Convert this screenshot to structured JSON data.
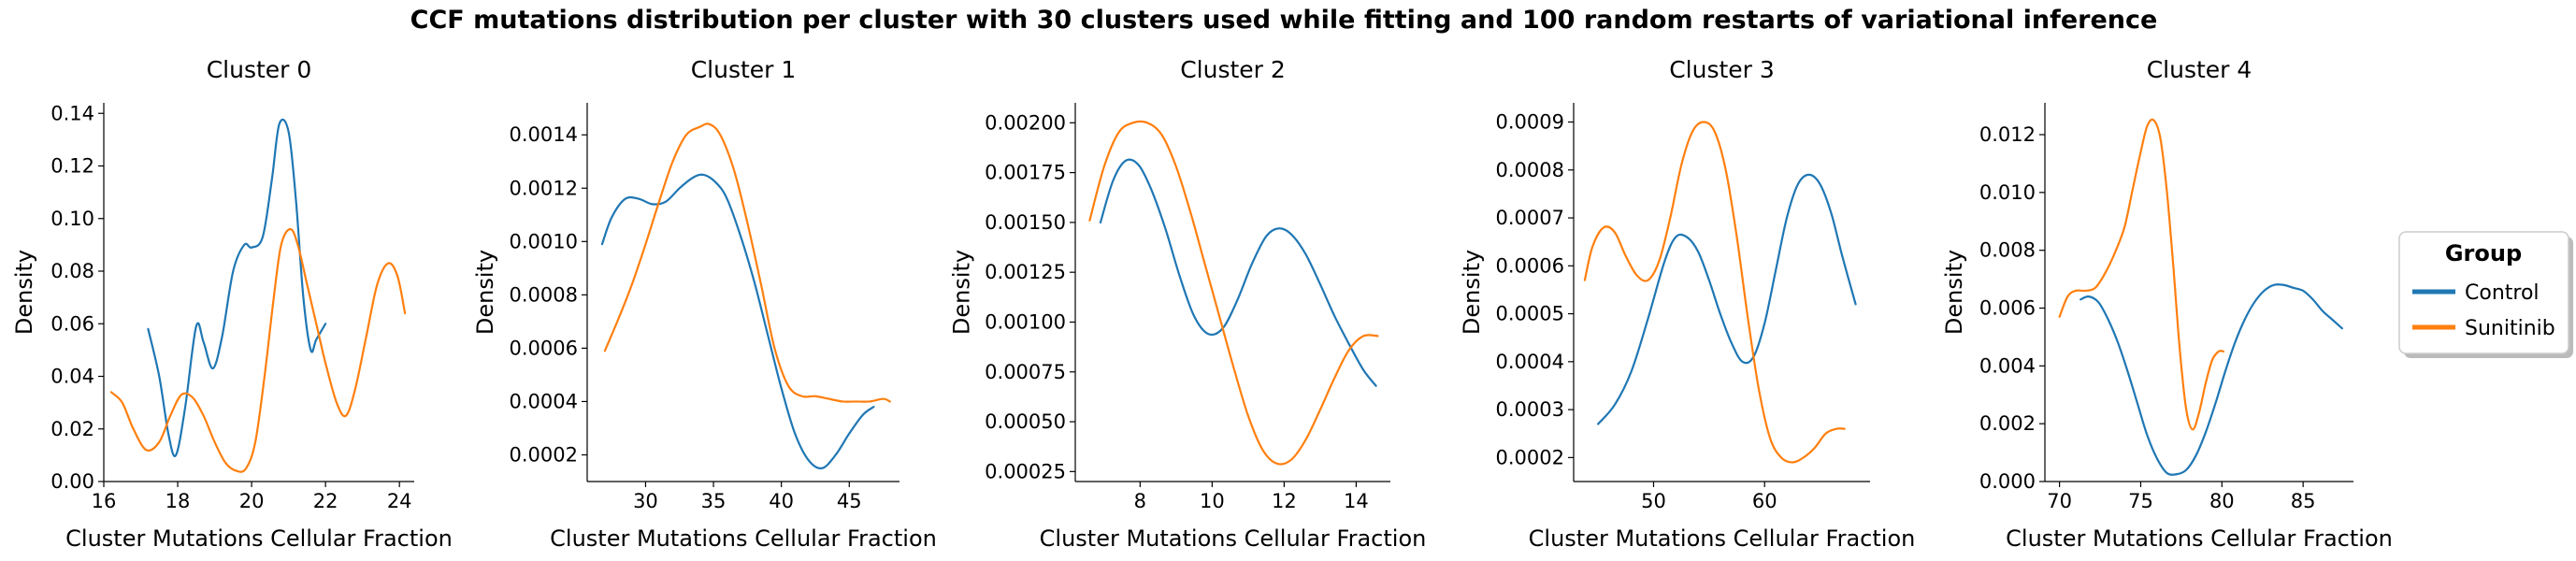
{
  "figure": {
    "title": "CCF mutations distribution per cluster with 30 clusters used while fitting and 100 random restarts of variational inference"
  },
  "colors": {
    "Control": "#1f77b4",
    "Sunitinib": "#ff7f0e"
  },
  "legend": {
    "title": "Group",
    "placement": "right",
    "entries": [
      "Control",
      "Sunitinib"
    ]
  },
  "chart_data": [
    {
      "type": "line",
      "title": "Cluster 0",
      "xlabel": "Cluster Mutations Cellular Fraction",
      "ylabel": "Density",
      "xlim": [
        16,
        24.4
      ],
      "ylim": [
        0,
        0.144
      ],
      "xticks": [
        16,
        18,
        20,
        22,
        24
      ],
      "xtick_labels": [
        "16",
        "18",
        "20",
        "22",
        "24"
      ],
      "yticks": [
        0,
        0.02,
        0.04,
        0.06,
        0.08,
        0.1,
        0.12,
        0.14
      ],
      "ytick_labels": [
        "0.00",
        "0.02",
        "0.04",
        "0.06",
        "0.08",
        "0.10",
        "0.12",
        "0.14"
      ],
      "series": [
        {
          "name": "Control",
          "x": [
            17.2,
            17.5,
            17.75,
            17.95,
            18.2,
            18.5,
            18.7,
            18.95,
            19.2,
            19.5,
            19.8,
            20.0,
            20.3,
            20.55,
            20.75,
            21.0,
            21.2,
            21.4,
            21.6,
            21.75,
            22.0
          ],
          "y": [
            0.058,
            0.04,
            0.018,
            0.01,
            0.028,
            0.059,
            0.053,
            0.043,
            0.055,
            0.08,
            0.09,
            0.089,
            0.093,
            0.115,
            0.136,
            0.133,
            0.107,
            0.07,
            0.05,
            0.054,
            0.06
          ]
        },
        {
          "name": "Sunitinib",
          "x": [
            16.2,
            16.5,
            16.8,
            17.15,
            17.5,
            17.8,
            18.1,
            18.4,
            18.7,
            19.0,
            19.3,
            19.6,
            19.85,
            20.1,
            20.35,
            20.6,
            20.8,
            21.05,
            21.25,
            21.5,
            21.75,
            22.0,
            22.3,
            22.55,
            22.8,
            23.1,
            23.4,
            23.7,
            23.95,
            24.15
          ],
          "y": [
            0.034,
            0.03,
            0.02,
            0.012,
            0.015,
            0.025,
            0.033,
            0.032,
            0.025,
            0.015,
            0.007,
            0.004,
            0.005,
            0.015,
            0.04,
            0.07,
            0.09,
            0.096,
            0.09,
            0.075,
            0.06,
            0.045,
            0.03,
            0.025,
            0.035,
            0.055,
            0.075,
            0.083,
            0.078,
            0.064
          ]
        }
      ]
    },
    {
      "type": "line",
      "title": "Cluster 1",
      "xlabel": "Cluster Mutations Cellular Fraction",
      "ylabel": "Density",
      "xlim": [
        25.7,
        48.7
      ],
      "ylim": [
        0.0001,
        0.00152
      ],
      "xticks": [
        30,
        35,
        40,
        45
      ],
      "xtick_labels": [
        "30",
        "35",
        "40",
        "45"
      ],
      "yticks": [
        0.0002,
        0.0004,
        0.0006,
        0.0008,
        0.001,
        0.0012,
        0.0014
      ],
      "ytick_labels": [
        "0.0002",
        "0.0004",
        "0.0006",
        "0.0008",
        "0.0010",
        "0.0012",
        "0.0014"
      ],
      "series": [
        {
          "name": "Control",
          "x": [
            26.8,
            27.5,
            28.5,
            29.5,
            30.5,
            31.5,
            32.5,
            33.5,
            34.3,
            35.2,
            36.0,
            37.0,
            38.0,
            39.0,
            40.0,
            41.0,
            42.0,
            43.0,
            44.0,
            45.0,
            46.0,
            46.8
          ],
          "y": [
            0.00099,
            0.00109,
            0.00116,
            0.00116,
            0.00114,
            0.00115,
            0.0012,
            0.00124,
            0.00125,
            0.00122,
            0.00116,
            0.00102,
            0.00085,
            0.00065,
            0.00045,
            0.00028,
            0.00018,
            0.00015,
            0.0002,
            0.00028,
            0.00035,
            0.00038
          ]
        },
        {
          "name": "Sunitinib",
          "x": [
            27.0,
            28.0,
            29.0,
            30.0,
            31.0,
            32.0,
            33.0,
            34.0,
            34.7,
            35.5,
            36.5,
            37.5,
            38.5,
            39.5,
            40.5,
            41.5,
            42.5,
            43.5,
            44.5,
            45.5,
            46.5,
            47.5,
            48.0
          ],
          "y": [
            0.00059,
            0.00071,
            0.00084,
            0.00099,
            0.00115,
            0.0013,
            0.0014,
            0.00143,
            0.00144,
            0.0014,
            0.00127,
            0.00107,
            0.00084,
            0.0006,
            0.00046,
            0.00042,
            0.00042,
            0.00041,
            0.0004,
            0.0004,
            0.0004,
            0.00041,
            0.0004
          ]
        }
      ]
    },
    {
      "type": "line",
      "title": "Cluster 2",
      "xlabel": "Cluster Mutations Cellular Fraction",
      "ylabel": "Density",
      "xlim": [
        6.2,
        14.95
      ],
      "ylim": [
        0.0002,
        0.0021
      ],
      "xticks": [
        8,
        10,
        12,
        14
      ],
      "xtick_labels": [
        "8",
        "10",
        "12",
        "14"
      ],
      "yticks": [
        0.00025,
        0.0005,
        0.00075,
        0.001,
        0.00125,
        0.0015,
        0.00175,
        0.002
      ],
      "ytick_labels": [
        "0.00025",
        "0.00050",
        "0.00075",
        "0.00100",
        "0.00125",
        "0.00150",
        "0.00175",
        "0.00200"
      ],
      "series": [
        {
          "name": "Control",
          "x": [
            6.9,
            7.25,
            7.6,
            7.95,
            8.3,
            8.7,
            9.1,
            9.5,
            9.9,
            10.3,
            10.7,
            11.1,
            11.5,
            11.85,
            12.2,
            12.6,
            13.0,
            13.4,
            13.8,
            14.2,
            14.55
          ],
          "y": [
            0.0015,
            0.00171,
            0.00181,
            0.00179,
            0.00167,
            0.00147,
            0.00123,
            0.00103,
            0.00094,
            0.00097,
            0.00111,
            0.00129,
            0.00143,
            0.00147,
            0.00144,
            0.00134,
            0.00119,
            0.00103,
            0.00089,
            0.00076,
            0.00068
          ]
        },
        {
          "name": "Sunitinib",
          "x": [
            6.6,
            7.0,
            7.4,
            7.8,
            8.2,
            8.6,
            9.0,
            9.4,
            9.8,
            10.2,
            10.6,
            11.0,
            11.4,
            11.8,
            12.2,
            12.6,
            13.0,
            13.4,
            13.8,
            14.2,
            14.6
          ],
          "y": [
            0.00151,
            0.00178,
            0.00195,
            0.002,
            0.002,
            0.00194,
            0.00178,
            0.00155,
            0.00129,
            0.00103,
            0.00077,
            0.00053,
            0.00036,
            0.00029,
            0.00031,
            0.00041,
            0.00056,
            0.00072,
            0.00086,
            0.00093,
            0.00093
          ]
        }
      ]
    },
    {
      "type": "line",
      "title": "Cluster 3",
      "xlabel": "Cluster Mutations Cellular Fraction",
      "ylabel": "Density",
      "xlim": [
        42.8,
        69.5
      ],
      "ylim": [
        0.00015,
        0.00094
      ],
      "xticks": [
        50,
        60
      ],
      "xtick_labels": [
        "50",
        "60"
      ],
      "yticks": [
        0.0002,
        0.0003,
        0.0004,
        0.0005,
        0.0006,
        0.0007,
        0.0008,
        0.0009
      ],
      "ytick_labels": [
        "0.0002",
        "0.0003",
        "0.0004",
        "0.0005",
        "0.0006",
        "0.0007",
        "0.0008",
        "0.0009"
      ],
      "series": [
        {
          "name": "Control",
          "x": [
            45.0,
            46.5,
            48.0,
            49.5,
            51.0,
            52.0,
            53.0,
            54.0,
            55.0,
            56.0,
            57.0,
            58.0,
            59.0,
            60.0,
            61.0,
            62.0,
            63.0,
            64.0,
            65.0,
            66.0,
            67.0,
            68.2
          ],
          "y": [
            0.00027,
            0.00031,
            0.00038,
            0.00049,
            0.00061,
            0.00066,
            0.00066,
            0.00063,
            0.00057,
            0.0005,
            0.00044,
            0.0004,
            0.00041,
            0.00048,
            0.00059,
            0.0007,
            0.00077,
            0.00079,
            0.00077,
            0.00071,
            0.00062,
            0.00052
          ]
        },
        {
          "name": "Sunitinib",
          "x": [
            43.8,
            44.5,
            45.5,
            46.5,
            47.5,
            48.5,
            49.5,
            50.5,
            51.5,
            52.5,
            53.5,
            54.5,
            55.5,
            56.5,
            57.5,
            58.5,
            59.5,
            60.5,
            61.5,
            62.5,
            63.5,
            64.5,
            65.5,
            66.5,
            67.2
          ],
          "y": [
            0.00057,
            0.00064,
            0.00068,
            0.00067,
            0.00062,
            0.00058,
            0.00057,
            0.00061,
            0.0007,
            0.00081,
            0.00088,
            0.0009,
            0.00088,
            0.0008,
            0.00066,
            0.00049,
            0.00034,
            0.00024,
            0.0002,
            0.00019,
            0.0002,
            0.00022,
            0.00025,
            0.00026,
            0.00026
          ]
        }
      ]
    },
    {
      "type": "line",
      "title": "Cluster 4",
      "xlabel": "Cluster Mutations Cellular Fraction",
      "ylabel": "Density",
      "xlim": [
        69.1,
        88.1
      ],
      "ylim": [
        0,
        0.0131
      ],
      "xticks": [
        70,
        75,
        80,
        85
      ],
      "xtick_labels": [
        "70",
        "75",
        "80",
        "85"
      ],
      "yticks": [
        0,
        0.002,
        0.004,
        0.006,
        0.008,
        0.01,
        0.012
      ],
      "ytick_labels": [
        "0.000",
        "0.002",
        "0.004",
        "0.006",
        "0.008",
        "0.010",
        "0.012"
      ],
      "series": [
        {
          "name": "Control",
          "x": [
            71.3,
            71.8,
            72.4,
            73.0,
            73.6,
            74.2,
            74.8,
            75.4,
            76.0,
            76.6,
            77.2,
            77.8,
            78.4,
            79.0,
            79.6,
            80.2,
            80.8,
            81.4,
            82.0,
            82.6,
            83.2,
            83.8,
            84.4,
            85.0,
            85.6,
            86.2,
            86.8,
            87.4
          ],
          "y": [
            0.0063,
            0.0064,
            0.0062,
            0.0056,
            0.0048,
            0.0038,
            0.0027,
            0.0016,
            0.0008,
            0.0003,
            0.00025,
            0.0004,
            0.0009,
            0.0017,
            0.0027,
            0.0038,
            0.0048,
            0.0056,
            0.0062,
            0.0066,
            0.0068,
            0.0068,
            0.0067,
            0.0066,
            0.0063,
            0.0059,
            0.0056,
            0.0053
          ]
        },
        {
          "name": "Sunitinib",
          "x": [
            70.0,
            70.5,
            71.0,
            71.6,
            72.2,
            72.8,
            73.4,
            74.0,
            74.5,
            75.0,
            75.4,
            75.8,
            76.2,
            76.6,
            77.0,
            77.4,
            77.8,
            78.2,
            78.6,
            79.0,
            79.4,
            79.8,
            80.1
          ],
          "y": [
            0.0057,
            0.0064,
            0.0066,
            0.0066,
            0.0067,
            0.0072,
            0.0079,
            0.0088,
            0.0101,
            0.0114,
            0.0123,
            0.0125,
            0.0119,
            0.0101,
            0.0075,
            0.0046,
            0.0025,
            0.0018,
            0.0024,
            0.0034,
            0.0042,
            0.0045,
            0.0045
          ]
        }
      ]
    }
  ]
}
